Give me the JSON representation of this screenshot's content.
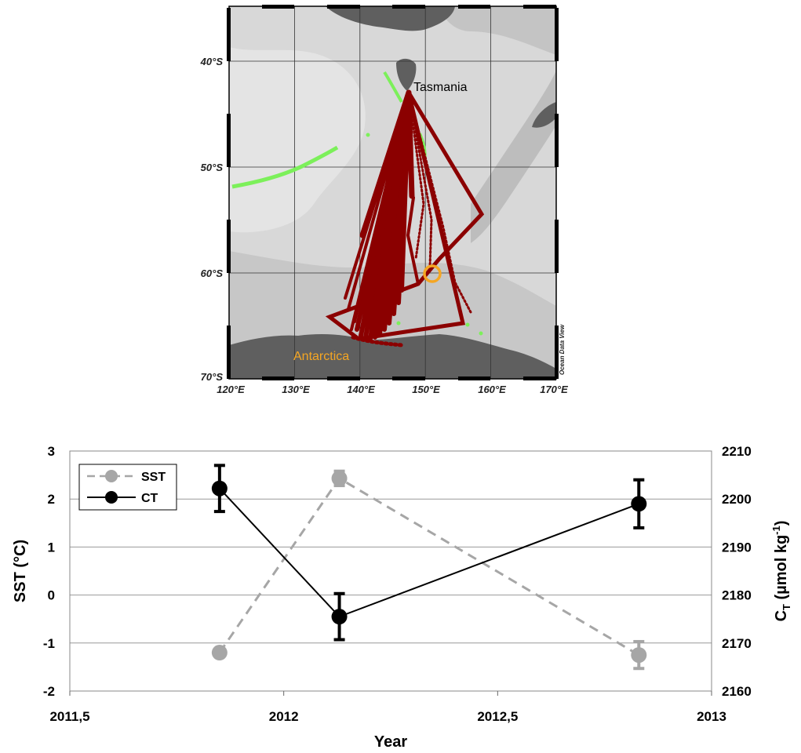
{
  "map": {
    "lon_ticks": [
      "120°E",
      "130°E",
      "140°E",
      "150°E",
      "160°E",
      "170°E"
    ],
    "lat_ticks": [
      "40°S",
      "50°S",
      "60°S",
      "70°S"
    ],
    "labels": {
      "tasmania": "Tasmania",
      "antarctica": "Antarctica",
      "watermark": "Ocean Data View"
    },
    "colors": {
      "track": "#8b0000",
      "green_track": "#7cf05a",
      "marker": "#f5a623",
      "land": "#5f5f5f",
      "ocean_light": "#d9d9d9"
    }
  },
  "chart_data": {
    "type": "line",
    "x": [
      2011.85,
      2012.13,
      2012.83
    ],
    "xlabel": "Year",
    "xlim": [
      2011.5,
      2013
    ],
    "xtick_labels": [
      "2011,5",
      "2012",
      "2012,5",
      "2013"
    ],
    "ylabel_left": "SST (°C)",
    "ylim_left": [
      -2,
      3
    ],
    "yticks_left": [
      "-2",
      "-1",
      "0",
      "1",
      "2",
      "3"
    ],
    "ylabel_right_main": "C",
    "ylabel_right_sub": "T",
    "ylabel_right_unit": " (µmol kg",
    "ylabel_right_exp": "-1",
    "ylabel_right_close": ")",
    "ylim_right": [
      2160,
      2210
    ],
    "yticks_right": [
      "2160",
      "2170",
      "2180",
      "2190",
      "2200",
      "2210"
    ],
    "grid": true,
    "legend_position": "top-left",
    "series": [
      {
        "name": "SST",
        "axis": "left",
        "values": [
          -1.2,
          2.43,
          -1.25
        ],
        "error": [
          0,
          0.15,
          0.28
        ],
        "color": "#a6a6a6",
        "style": "dashed"
      },
      {
        "name": "CT",
        "axis": "right",
        "values": [
          2202.2,
          2175.5,
          2199.0
        ],
        "error": [
          4.8,
          4.8,
          5.0
        ],
        "color": "#000000",
        "style": "solid"
      }
    ]
  }
}
